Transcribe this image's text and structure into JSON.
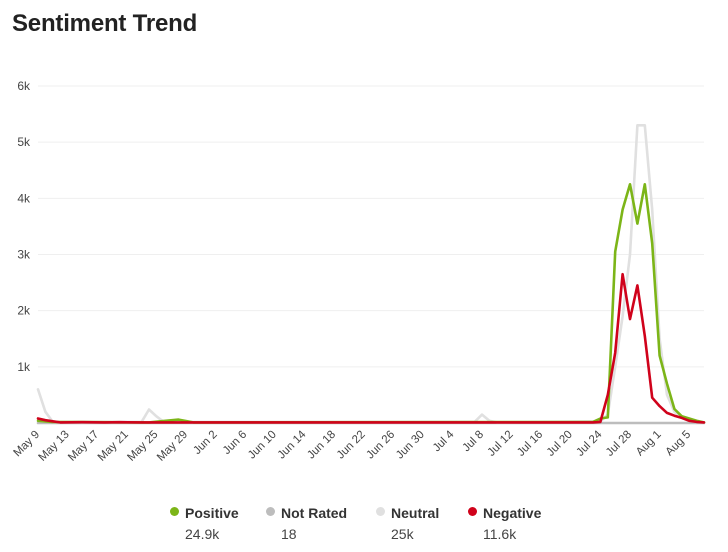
{
  "title": "Sentiment Trend",
  "chart_data": {
    "type": "line",
    "title": "Sentiment Trend",
    "xlabel": "",
    "ylabel": "",
    "ylim": [
      0,
      6000
    ],
    "y_ticks": [
      {
        "value": 1000,
        "label": "1k"
      },
      {
        "value": 2000,
        "label": "2k"
      },
      {
        "value": 3000,
        "label": "3k"
      },
      {
        "value": 4000,
        "label": "4k"
      },
      {
        "value": 5000,
        "label": "5k"
      },
      {
        "value": 6000,
        "label": "6k"
      }
    ],
    "x_start": "2024-05-09",
    "x_end": "2024-08-07",
    "x_tick_labels": [
      "May 9",
      "May 13",
      "May 17",
      "May 21",
      "May 25",
      "May 29",
      "Jun 2",
      "Jun 6",
      "Jun 10",
      "Jun 14",
      "Jun 18",
      "Jun 22",
      "Jun 26",
      "Jun 30",
      "Jul 4",
      "Jul 8",
      "Jul 12",
      "Jul 16",
      "Jul 20",
      "Jul 24",
      "Jul 28",
      "Aug 1",
      "Aug 5"
    ],
    "grid": true,
    "legend_position": "bottom",
    "series": [
      {
        "name": "Positive",
        "color": "#7cb518",
        "total": "24.9k",
        "points": [
          [
            "2024-05-09",
            40
          ],
          [
            "2024-05-11",
            20
          ],
          [
            "2024-05-24",
            10
          ],
          [
            "2024-05-28",
            60
          ],
          [
            "2024-05-30",
            10
          ],
          [
            "2024-07-23",
            20
          ],
          [
            "2024-07-24",
            80
          ],
          [
            "2024-07-25",
            100
          ],
          [
            "2024-07-26",
            3050
          ],
          [
            "2024-07-27",
            3800
          ],
          [
            "2024-07-28",
            4250
          ],
          [
            "2024-07-29",
            3550
          ],
          [
            "2024-07-30",
            4250
          ],
          [
            "2024-07-31",
            3200
          ],
          [
            "2024-08-01",
            1200
          ],
          [
            "2024-08-02",
            700
          ],
          [
            "2024-08-03",
            250
          ],
          [
            "2024-08-04",
            120
          ],
          [
            "2024-08-05",
            80
          ],
          [
            "2024-08-06",
            40
          ],
          [
            "2024-08-07",
            10
          ]
        ]
      },
      {
        "name": "Not Rated",
        "color": "#bdbdbd",
        "total": "18",
        "points": [
          [
            "2024-05-09",
            0
          ],
          [
            "2024-08-07",
            0
          ]
        ]
      },
      {
        "name": "Neutral",
        "color": "#e0e0e0",
        "total": "25k",
        "points": [
          [
            "2024-05-09",
            600
          ],
          [
            "2024-05-10",
            200
          ],
          [
            "2024-05-11",
            20
          ],
          [
            "2024-05-23",
            20
          ],
          [
            "2024-05-24",
            240
          ],
          [
            "2024-05-25",
            120
          ],
          [
            "2024-05-26",
            20
          ],
          [
            "2024-07-07",
            20
          ],
          [
            "2024-07-08",
            150
          ],
          [
            "2024-07-09",
            40
          ],
          [
            "2024-07-10",
            10
          ],
          [
            "2024-07-24",
            30
          ],
          [
            "2024-07-25",
            150
          ],
          [
            "2024-07-26",
            1000
          ],
          [
            "2024-07-27",
            1900
          ],
          [
            "2024-07-28",
            3000
          ],
          [
            "2024-07-29",
            5300
          ],
          [
            "2024-07-30",
            5300
          ],
          [
            "2024-07-31",
            3800
          ],
          [
            "2024-08-01",
            1500
          ],
          [
            "2024-08-02",
            500
          ],
          [
            "2024-08-03",
            200
          ],
          [
            "2024-08-04",
            100
          ],
          [
            "2024-08-05",
            60
          ],
          [
            "2024-08-06",
            30
          ],
          [
            "2024-08-07",
            10
          ]
        ]
      },
      {
        "name": "Negative",
        "color": "#d0021b",
        "total": "11.6k",
        "points": [
          [
            "2024-05-09",
            80
          ],
          [
            "2024-05-10",
            50
          ],
          [
            "2024-05-11",
            30
          ],
          [
            "2024-05-12",
            10
          ],
          [
            "2024-05-15",
            15
          ],
          [
            "2024-05-18",
            10
          ],
          [
            "2024-05-20",
            15
          ],
          [
            "2024-05-23",
            10
          ],
          [
            "2024-07-23",
            10
          ],
          [
            "2024-07-24",
            20
          ],
          [
            "2024-07-25",
            500
          ],
          [
            "2024-07-26",
            1250
          ],
          [
            "2024-07-27",
            2650
          ],
          [
            "2024-07-28",
            1850
          ],
          [
            "2024-07-29",
            2450
          ],
          [
            "2024-07-30",
            1550
          ],
          [
            "2024-07-31",
            450
          ],
          [
            "2024-08-01",
            300
          ],
          [
            "2024-08-02",
            180
          ],
          [
            "2024-08-03",
            130
          ],
          [
            "2024-08-04",
            90
          ],
          [
            "2024-08-05",
            40
          ],
          [
            "2024-08-06",
            20
          ],
          [
            "2024-08-07",
            10
          ]
        ]
      }
    ]
  },
  "legend": [
    {
      "name": "Positive",
      "total": "24.9k",
      "color": "#7cb518"
    },
    {
      "name": "Not Rated",
      "total": "18",
      "color": "#bdbdbd"
    },
    {
      "name": "Neutral",
      "total": "25k",
      "color": "#e0e0e0"
    },
    {
      "name": "Negative",
      "total": "11.6k",
      "color": "#d0021b"
    }
  ]
}
